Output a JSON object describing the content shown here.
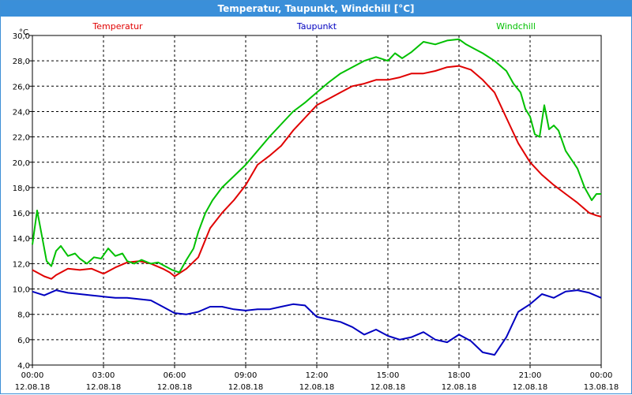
{
  "window": {
    "title": "Temperatur, Taupunkt, Windchill [°C]"
  },
  "chart_data": {
    "type": "line",
    "title": "Temperatur, Taupunkt, Windchill [°C]",
    "ylabel": "°C",
    "ylim": [
      4,
      30
    ],
    "xlim": [
      0,
      24
    ],
    "grid": true,
    "y_ticks": [
      "4,0",
      "6,0",
      "8,0",
      "10,0",
      "12,0",
      "14,0",
      "16,0",
      "18,0",
      "20,0",
      "22,0",
      "24,0",
      "26,0",
      "28,0",
      "30,0"
    ],
    "x_ticks": [
      {
        "time": "00:00",
        "date": "12.08.18"
      },
      {
        "time": "03:00",
        "date": "12.08.18"
      },
      {
        "time": "06:00",
        "date": "12.08.18"
      },
      {
        "time": "09:00",
        "date": "12.08.18"
      },
      {
        "time": "12:00",
        "date": "12.08.18"
      },
      {
        "time": "15:00",
        "date": "12.08.18"
      },
      {
        "time": "18:00",
        "date": "12.08.18"
      },
      {
        "time": "21:00",
        "date": "12.08.18"
      },
      {
        "time": "00:00",
        "date": "13.08.18"
      }
    ],
    "series": [
      {
        "name": "Temperatur",
        "color": "#e00000",
        "x": [
          0,
          0.5,
          0.8,
          1,
          1.5,
          2,
          2.5,
          3,
          3.5,
          4,
          4.5,
          5,
          5.5,
          5.8,
          6,
          6.5,
          7,
          7.5,
          8,
          8.5,
          9,
          9.5,
          10,
          10.5,
          11,
          11.5,
          12,
          12.5,
          13,
          13.5,
          14,
          14.5,
          15,
          15.5,
          16,
          16.5,
          17,
          17.5,
          18,
          18.5,
          19,
          19.5,
          20,
          20.5,
          21,
          21.5,
          22,
          22.5,
          23,
          23.5,
          23.8,
          24
        ],
        "values": [
          11.5,
          11,
          10.8,
          11.1,
          11.6,
          11.5,
          11.6,
          11.2,
          11.7,
          12.1,
          12.2,
          12.0,
          11.6,
          11.3,
          11.0,
          11.6,
          12.5,
          14.8,
          16.0,
          17.0,
          18.2,
          19.8,
          20.5,
          21.3,
          22.5,
          23.5,
          24.5,
          25.0,
          25.5,
          26.0,
          26.2,
          26.5,
          26.5,
          26.7,
          27.0,
          27.0,
          27.2,
          27.5,
          27.6,
          27.3,
          26.5,
          25.5,
          23.5,
          21.5,
          20.0,
          19.0,
          18.2,
          17.5,
          16.8,
          16.0,
          15.8,
          15.7
        ]
      },
      {
        "name": "Taupunkt",
        "color": "#0000c0",
        "x": [
          0,
          0.5,
          1,
          1.5,
          2,
          2.5,
          3,
          3.5,
          4,
          4.5,
          5,
          5.5,
          6,
          6.5,
          7,
          7.5,
          8,
          8.5,
          9,
          9.5,
          10,
          10.5,
          11,
          11.5,
          12,
          12.5,
          13,
          13.5,
          14,
          14.5,
          15,
          15.5,
          16,
          16.5,
          17,
          17.5,
          18,
          18.5,
          19,
          19.5,
          20,
          20.5,
          21,
          21.5,
          22,
          22.5,
          23,
          23.5,
          24
        ],
        "values": [
          9.8,
          9.5,
          9.9,
          9.7,
          9.6,
          9.5,
          9.4,
          9.3,
          9.3,
          9.2,
          9.1,
          8.6,
          8.1,
          8.0,
          8.2,
          8.6,
          8.6,
          8.4,
          8.3,
          8.4,
          8.4,
          8.6,
          8.8,
          8.7,
          7.8,
          7.6,
          7.4,
          7.0,
          6.4,
          6.8,
          6.3,
          6.0,
          6.2,
          6.6,
          6.0,
          5.8,
          6.4,
          5.9,
          5.0,
          4.8,
          6.2,
          8.2,
          8.8,
          9.6,
          9.3,
          9.8,
          9.9,
          9.7,
          9.3
        ]
      },
      {
        "name": "Windchill",
        "color": "#00c000",
        "x": [
          0,
          0.2,
          0.4,
          0.6,
          0.8,
          1,
          1.2,
          1.5,
          1.8,
          2,
          2.3,
          2.6,
          2.9,
          3.2,
          3.5,
          3.8,
          4,
          4.3,
          4.6,
          5,
          5.3,
          5.6,
          5.9,
          6.2,
          6.5,
          6.8,
          7,
          7.3,
          7.6,
          8,
          8.5,
          9,
          9.5,
          10,
          10.5,
          11,
          11.5,
          12,
          12.5,
          13,
          13.5,
          14,
          14.5,
          15,
          15.3,
          15.6,
          16,
          16.5,
          17,
          17.5,
          18,
          18.3,
          18.6,
          19,
          19.5,
          20,
          20.3,
          20.6,
          20.8,
          21,
          21.2,
          21.4,
          21.6,
          21.8,
          22,
          22.2,
          22.5,
          23,
          23.3,
          23.6,
          23.8,
          24
        ],
        "values": [
          13.5,
          16.2,
          14.2,
          12.2,
          11.8,
          13.0,
          13.4,
          12.6,
          12.8,
          12.4,
          12.0,
          12.5,
          12.4,
          13.2,
          12.6,
          12.8,
          12.2,
          12.0,
          12.3,
          12.0,
          12.1,
          11.8,
          11.5,
          11.3,
          12.3,
          13.2,
          14.5,
          16.0,
          17.0,
          18.0,
          18.9,
          19.8,
          20.9,
          22.0,
          23.0,
          24.0,
          24.7,
          25.5,
          26.3,
          27.0,
          27.5,
          28.0,
          28.3,
          28.0,
          28.6,
          28.2,
          28.7,
          29.5,
          29.3,
          29.6,
          29.7,
          29.3,
          29.0,
          28.6,
          28.0,
          27.2,
          26.2,
          25.5,
          24.2,
          23.6,
          22.2,
          22.0,
          24.5,
          22.6,
          22.9,
          22.5,
          20.9,
          19.5,
          18.0,
          17.0,
          17.5,
          17.5
        ]
      }
    ]
  }
}
